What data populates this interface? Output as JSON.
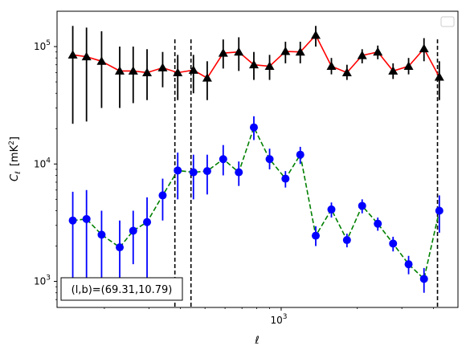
{
  "chart_data": {
    "type": "scatter",
    "xscale": "log",
    "yscale": "log",
    "xlim": [
      130,
      5000
    ],
    "ylim": [
      600,
      200000
    ],
    "xticks": [
      {
        "value": 1000,
        "base": "10",
        "exp": "3"
      }
    ],
    "yticks": [
      {
        "value": 1000,
        "base": "10",
        "exp": "3"
      },
      {
        "value": 10000,
        "base": "10",
        "exp": "4"
      },
      {
        "value": 100000,
        "base": "10",
        "exp": "5"
      }
    ],
    "xlabel": "ℓ",
    "ylabel_main": "C",
    "ylabel_sub": "ℓ",
    "ylabel_unit": "[mK",
    "ylabel_unit_sup": "2",
    "ylabel_unit_end": "]",
    "vlines": [
      380,
      440,
      4150
    ],
    "annotation": "(l,b)=(69.31,10.79)",
    "legend": "top-right",
    "grid": false,
    "series": [
      {
        "color": "#ff0000",
        "marker": "triangle",
        "marker_color": "#000000",
        "errorbar_color": "#000000",
        "linestyle": "solid",
        "points": [
          {
            "x": 150,
            "y": 85000,
            "lo": 22000,
            "hi": 150000
          },
          {
            "x": 170,
            "y": 82000,
            "lo": 23000,
            "hi": 145000
          },
          {
            "x": 195,
            "y": 75000,
            "lo": 30000,
            "hi": 135000
          },
          {
            "x": 230,
            "y": 62000,
            "lo": 30000,
            "hi": 100000
          },
          {
            "x": 260,
            "y": 62000,
            "lo": 33000,
            "hi": 100000
          },
          {
            "x": 295,
            "y": 60000,
            "lo": 35000,
            "hi": 95000
          },
          {
            "x": 340,
            "y": 66000,
            "lo": 45000,
            "hi": 90000
          },
          {
            "x": 390,
            "y": 60000,
            "lo": 35000,
            "hi": 85000
          },
          {
            "x": 450,
            "y": 63000,
            "lo": 40000,
            "hi": 85000
          },
          {
            "x": 510,
            "y": 54000,
            "lo": 35000,
            "hi": 75000
          },
          {
            "x": 590,
            "y": 88000,
            "lo": 65000,
            "hi": 115000
          },
          {
            "x": 680,
            "y": 90000,
            "lo": 62000,
            "hi": 120000
          },
          {
            "x": 780,
            "y": 70000,
            "lo": 52000,
            "hi": 90000
          },
          {
            "x": 900,
            "y": 68000,
            "lo": 52000,
            "hi": 85000
          },
          {
            "x": 1040,
            "y": 91000,
            "lo": 72000,
            "hi": 110000
          },
          {
            "x": 1190,
            "y": 90000,
            "lo": 72000,
            "hi": 110000
          },
          {
            "x": 1370,
            "y": 125000,
            "lo": 100000,
            "hi": 150000
          },
          {
            "x": 1580,
            "y": 68000,
            "lo": 58000,
            "hi": 80000
          },
          {
            "x": 1820,
            "y": 60000,
            "lo": 52000,
            "hi": 70000
          },
          {
            "x": 2090,
            "y": 84000,
            "lo": 72000,
            "hi": 95000
          },
          {
            "x": 2410,
            "y": 90000,
            "lo": 78000,
            "hi": 102000
          },
          {
            "x": 2770,
            "y": 62000,
            "lo": 53000,
            "hi": 72000
          },
          {
            "x": 3190,
            "y": 68000,
            "lo": 58000,
            "hi": 80000
          },
          {
            "x": 3670,
            "y": 96000,
            "lo": 75000,
            "hi": 118000
          },
          {
            "x": 4220,
            "y": 55000,
            "lo": 35000,
            "hi": 75000
          }
        ]
      },
      {
        "color": "#008000",
        "marker": "circle",
        "marker_color": "#0000ff",
        "errorbar_color": "#0000ff",
        "linestyle": "dashed",
        "points": [
          {
            "x": 150,
            "y": 3300,
            "lo": 700,
            "hi": 5800
          },
          {
            "x": 170,
            "y": 3400,
            "lo": 800,
            "hi": 6000
          },
          {
            "x": 195,
            "y": 2500,
            "lo": 700,
            "hi": 4000
          },
          {
            "x": 230,
            "y": 1950,
            "lo": 700,
            "hi": 3300
          },
          {
            "x": 260,
            "y": 2700,
            "lo": 1400,
            "hi": 4000
          },
          {
            "x": 295,
            "y": 3200,
            "lo": 1000,
            "hi": 5200
          },
          {
            "x": 340,
            "y": 5400,
            "lo": 3300,
            "hi": 7500
          },
          {
            "x": 390,
            "y": 8800,
            "lo": 5000,
            "hi": 12500
          },
          {
            "x": 450,
            "y": 8500,
            "lo": 5000,
            "hi": 12000
          },
          {
            "x": 510,
            "y": 8700,
            "lo": 5500,
            "hi": 12000
          },
          {
            "x": 590,
            "y": 11000,
            "lo": 8000,
            "hi": 14500
          },
          {
            "x": 680,
            "y": 8500,
            "lo": 6500,
            "hi": 10500
          },
          {
            "x": 780,
            "y": 20500,
            "lo": 16000,
            "hi": 25500
          },
          {
            "x": 900,
            "y": 11000,
            "lo": 9000,
            "hi": 13500
          },
          {
            "x": 1040,
            "y": 7500,
            "lo": 6300,
            "hi": 8700
          },
          {
            "x": 1190,
            "y": 12000,
            "lo": 10000,
            "hi": 14000
          },
          {
            "x": 1370,
            "y": 2450,
            "lo": 2000,
            "hi": 2950
          },
          {
            "x": 1580,
            "y": 4100,
            "lo": 3500,
            "hi": 4700
          },
          {
            "x": 1820,
            "y": 2250,
            "lo": 1950,
            "hi": 2550
          },
          {
            "x": 2090,
            "y": 4400,
            "lo": 3800,
            "hi": 5000
          },
          {
            "x": 2410,
            "y": 3100,
            "lo": 2700,
            "hi": 3500
          },
          {
            "x": 2770,
            "y": 2100,
            "lo": 1800,
            "hi": 2400
          },
          {
            "x": 3190,
            "y": 1400,
            "lo": 1150,
            "hi": 1650
          },
          {
            "x": 3670,
            "y": 1050,
            "lo": 800,
            "hi": 1300
          },
          {
            "x": 4220,
            "y": 4000,
            "lo": 2600,
            "hi": 5400
          }
        ]
      }
    ]
  }
}
